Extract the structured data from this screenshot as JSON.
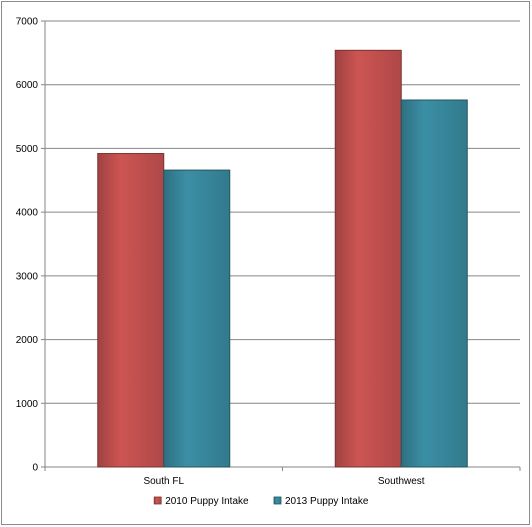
{
  "chart_data": {
    "type": "bar",
    "categories": [
      "South FL",
      "Southwest"
    ],
    "series": [
      {
        "name": "2010 Puppy Intake",
        "values": [
          4920,
          6540
        ],
        "color": "#cd5553"
      },
      {
        "name": "2013 Puppy Intake",
        "values": [
          4660,
          5760
        ],
        "color": "#3b8fa5"
      }
    ],
    "ylim": [
      0,
      7000
    ],
    "yticks": [
      0,
      1000,
      2000,
      3000,
      4000,
      5000,
      6000,
      7000
    ],
    "grid": true,
    "legend_position": "bottom",
    "title": "",
    "xlabel": "",
    "ylabel": ""
  }
}
